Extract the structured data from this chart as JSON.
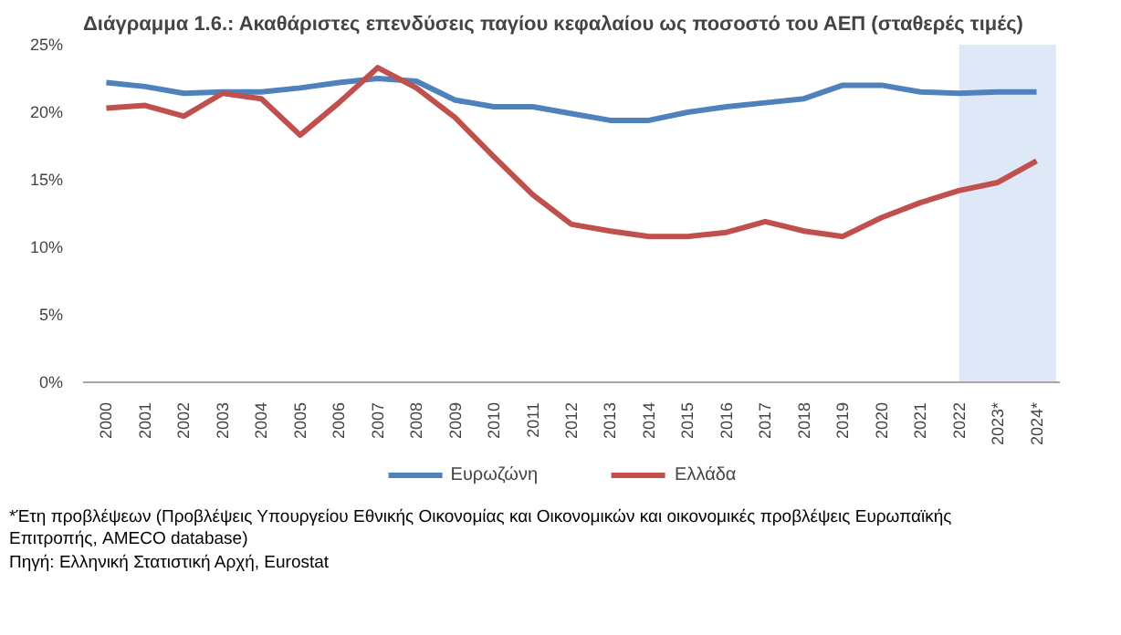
{
  "chart_data": {
    "type": "line",
    "title": "Διάγραμμα 1.6.: Ακαθάριστες επενδύσεις παγίου κεφαλαίου ως ποσοστό του ΑΕΠ (σταθερές τιμές)",
    "categories": [
      "2000",
      "2001",
      "2002",
      "2003",
      "2004",
      "2005",
      "2006",
      "2007",
      "2008",
      "2009",
      "2010",
      "2011",
      "2012",
      "2013",
      "2014",
      "2015",
      "2016",
      "2017",
      "2018",
      "2019",
      "2020",
      "2021",
      "2022",
      "2023*",
      "2024*"
    ],
    "series": [
      {
        "name": "Ευρωζώνη",
        "color": "#4f81bd",
        "values": [
          22.2,
          21.9,
          21.4,
          21.5,
          21.5,
          21.8,
          22.2,
          22.5,
          22.3,
          20.9,
          20.4,
          20.4,
          19.9,
          19.4,
          19.4,
          20.0,
          20.4,
          20.7,
          21.0,
          22.0,
          22.0,
          21.5,
          21.4,
          21.5,
          21.5
        ]
      },
      {
        "name": "Ελλάδα",
        "color": "#c0504d",
        "values": [
          20.3,
          20.5,
          19.7,
          21.4,
          21.0,
          18.3,
          20.7,
          23.3,
          21.8,
          19.6,
          16.7,
          13.9,
          11.7,
          11.2,
          10.8,
          10.8,
          11.1,
          11.9,
          11.2,
          10.8,
          12.2,
          13.3,
          14.2,
          14.8,
          16.4
        ]
      }
    ],
    "ylim": [
      0,
      25
    ],
    "yticks": [
      {
        "value": 0,
        "label": "0%"
      },
      {
        "value": 5,
        "label": "5%"
      },
      {
        "value": 10,
        "label": "10%"
      },
      {
        "value": 15,
        "label": "15%"
      },
      {
        "value": 20,
        "label": "20%"
      },
      {
        "value": 25,
        "label": "25%"
      }
    ],
    "bands": [
      {
        "axis": "x",
        "from": "2022",
        "to": "2024*",
        "color": "#dce6f5"
      }
    ],
    "grid": false,
    "legend": "bottom",
    "marker": "none",
    "line_style": "solid",
    "annotations": [
      "*Έτη προβλέψεων (Προβλέψεις Υπουργείου Εθνικής Οικονομίας και Οικονομικών και οικονομικές προβλέψεις Ευρωπαϊκής Επιτροπής, AMECO database)",
      "Πηγή: Ελληνική Στατιστική Αρχή, Eurostat"
    ]
  }
}
